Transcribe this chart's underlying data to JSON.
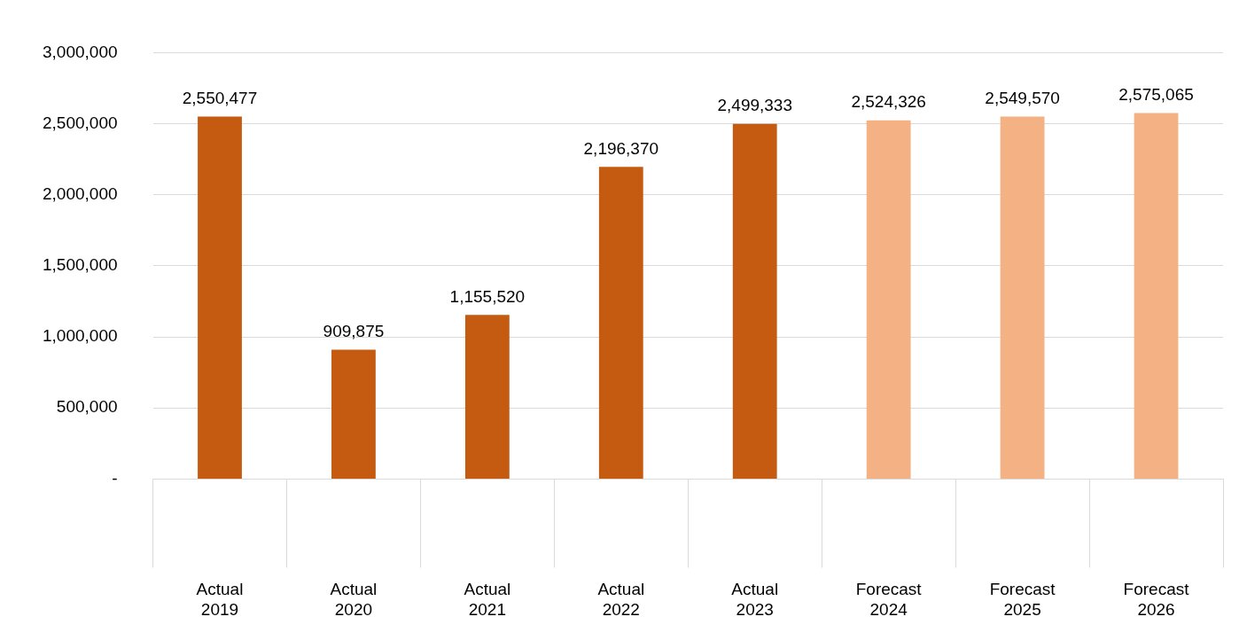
{
  "chart_data": {
    "type": "bar",
    "categories": [
      "Actual\n2019",
      "Actual\n2020",
      "Actual\n2021",
      "Actual\n2022",
      "Actual\n2023",
      "Forecast\n2024",
      "Forecast\n2025",
      "Forecast\n2026"
    ],
    "values": [
      2550477,
      909875,
      1155520,
      2196370,
      2499333,
      2524326,
      2549570,
      2575065
    ],
    "colors": [
      "#c55a11",
      "#c55a11",
      "#c55a11",
      "#c55a11",
      "#c55a11",
      "#f4b183",
      "#f4b183",
      "#f4b183"
    ],
    "value_labels": [
      "2,550,477",
      "909,875",
      "1,155,520",
      "2,196,370",
      "2,499,333",
      "2,524,326",
      "2,549,570",
      "2,575,065"
    ],
    "ylim": [
      0,
      3000000
    ],
    "yticks": [
      {
        "value": 0,
        "label": "-"
      },
      {
        "value": 500000,
        "label": "500,000"
      },
      {
        "value": 1000000,
        "label": "1,000,000"
      },
      {
        "value": 1500000,
        "label": "1,500,000"
      },
      {
        "value": 2000000,
        "label": "2,000,000"
      },
      {
        "value": 2500000,
        "label": "2,500,000"
      },
      {
        "value": 3000000,
        "label": "3,000,000"
      }
    ],
    "grid": "y",
    "legend": false
  }
}
